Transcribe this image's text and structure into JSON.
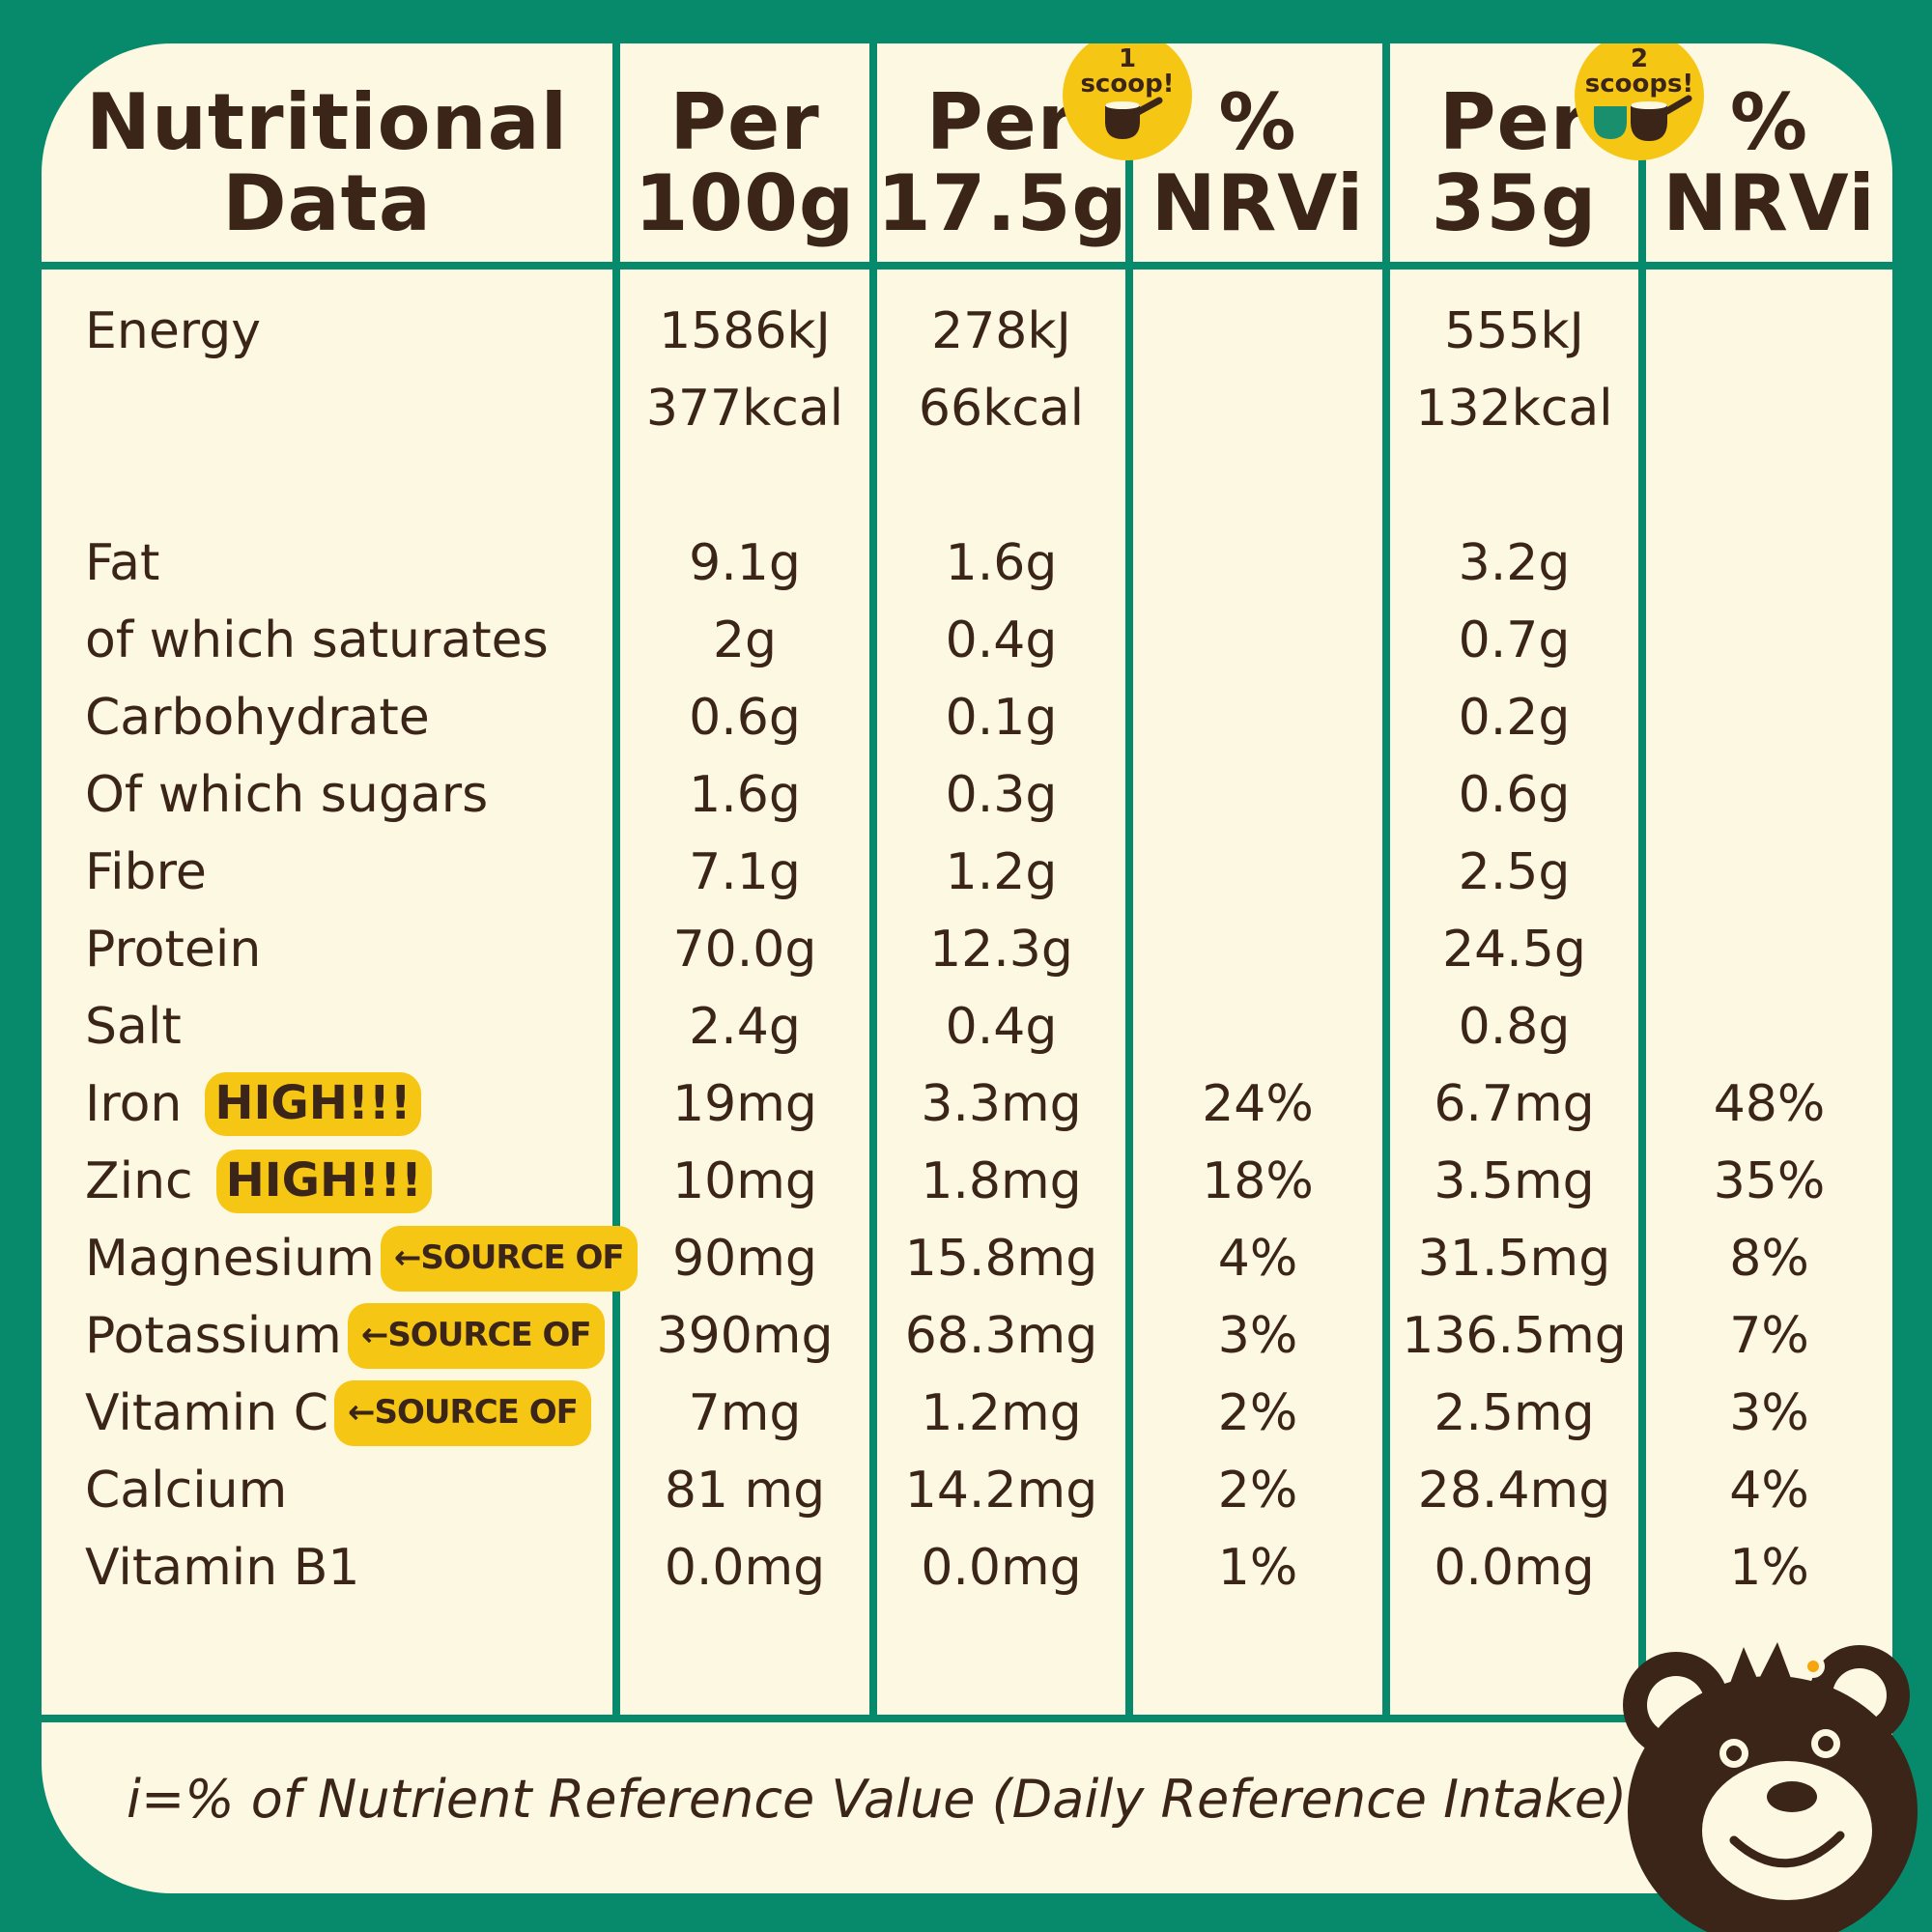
{
  "header": {
    "col0": [
      "Nutritional",
      "Data"
    ],
    "col1": [
      "Per",
      "100g"
    ],
    "col2": [
      "Per",
      "17.5g"
    ],
    "col3": [
      "%",
      "NRVi"
    ],
    "col4": [
      "Per",
      "35g"
    ],
    "col5": [
      "%",
      "NRVi"
    ],
    "scoop1": [
      "1",
      "scoop!"
    ],
    "scoop2": [
      "2",
      "scoops!"
    ]
  },
  "energy": {
    "label": "Energy",
    "per100": [
      "1586kJ",
      "377kcal"
    ],
    "per17": [
      "278kJ",
      "66kcal"
    ],
    "per35": [
      "555kJ",
      "132kcal"
    ]
  },
  "rows": [
    {
      "label": "Fat",
      "per100": "9.1g",
      "per17": "1.6g",
      "nrv1": "",
      "per35": "3.2g",
      "nrv2": ""
    },
    {
      "label": "of which saturates",
      "per100": "2g",
      "per17": "0.4g",
      "nrv1": "",
      "per35": "0.7g",
      "nrv2": ""
    },
    {
      "label": "Carbohydrate",
      "per100": "0.6g",
      "per17": "0.1g",
      "nrv1": "",
      "per35": "0.2g",
      "nrv2": ""
    },
    {
      "label": "Of which sugars",
      "per100": "1.6g",
      "per17": "0.3g",
      "nrv1": "",
      "per35": "0.6g",
      "nrv2": ""
    },
    {
      "label": "Fibre",
      "per100": "7.1g",
      "per17": "1.2g",
      "nrv1": "",
      "per35": "2.5g",
      "nrv2": ""
    },
    {
      "label": "Protein",
      "per100": "70.0g",
      "per17": "12.3g",
      "nrv1": "",
      "per35": "24.5g",
      "nrv2": ""
    },
    {
      "label": "Salt",
      "per100": "2.4g",
      "per17": "0.4g",
      "nrv1": "",
      "per35": "0.8g",
      "nrv2": ""
    },
    {
      "label": "Iron",
      "badge": "HIGH!!!",
      "per100": "19mg",
      "per17": "3.3mg",
      "nrv1": "24%",
      "per35": "6.7mg",
      "nrv2": "48%"
    },
    {
      "label": "Zinc",
      "badge": "HIGH!!!",
      "per100": "10mg",
      "per17": "1.8mg",
      "nrv1": "18%",
      "per35": "3.5mg",
      "nrv2": "35%"
    },
    {
      "label": "Magnesium",
      "source": "←SOURCE OF",
      "per100": "90mg",
      "per17": "15.8mg",
      "nrv1": "4%",
      "per35": "31.5mg",
      "nrv2": "8%"
    },
    {
      "label": "Potassium",
      "source": "←SOURCE OF",
      "per100": "390mg",
      "per17": "68.3mg",
      "nrv1": "3%",
      "per35": "136.5mg",
      "nrv2": "7%"
    },
    {
      "label": "Vitamin C",
      "source": "←SOURCE OF",
      "per100": "7mg",
      "per17": "1.2mg",
      "nrv1": "2%",
      "per35": "2.5mg",
      "nrv2": "3%"
    },
    {
      "label": "Calcium",
      "per100": "81 mg",
      "per17": "14.2mg",
      "nrv1": "2%",
      "per35": "28.4mg",
      "nrv2": "4%"
    },
    {
      "label": "Vitamin B1",
      "per100": "0.0mg",
      "per17": "0.0mg",
      "nrv1": "1%",
      "per35": "0.0mg",
      "nrv2": "1%"
    }
  ],
  "footnote": "i=% of Nutrient Reference Value (Daily Reference Intake)",
  "colors": {
    "green": "#078a6c",
    "cream": "#fdf8e1",
    "brown": "#3b2418",
    "yellow": "#f6c614"
  }
}
